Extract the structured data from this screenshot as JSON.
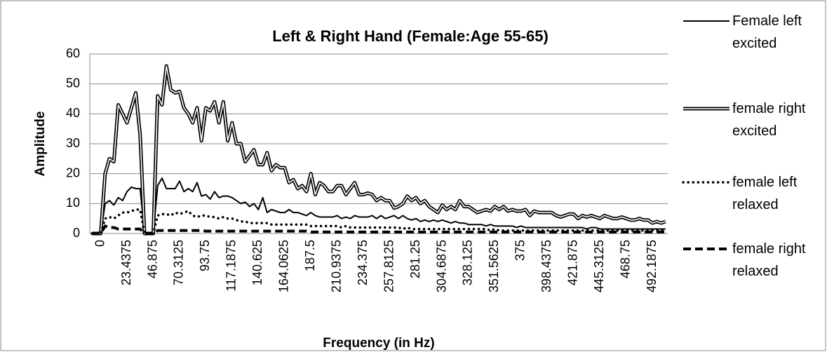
{
  "chart_data": {
    "type": "line",
    "title": "Left & Right Hand (Female:Age 55-65)",
    "x_label": "Frequency (in Hz)",
    "y_label": "Amplitude",
    "ylim": [
      0,
      60
    ],
    "yticks": [
      0,
      10,
      20,
      30,
      40,
      50,
      60
    ],
    "grid": true,
    "legend": "right",
    "categories": [
      null,
      null,
      "0",
      null,
      null,
      null,
      null,
      null,
      "23.4375",
      null,
      null,
      null,
      null,
      null,
      "46.875",
      null,
      null,
      null,
      null,
      null,
      "70.3125",
      null,
      null,
      null,
      null,
      null,
      "93.75",
      null,
      null,
      null,
      null,
      null,
      "117.1875",
      null,
      null,
      null,
      null,
      null,
      "140.625",
      null,
      null,
      null,
      null,
      null,
      "164.0625",
      null,
      null,
      null,
      null,
      null,
      "187.5",
      null,
      null,
      null,
      null,
      null,
      "210.9375",
      null,
      null,
      null,
      null,
      null,
      "234.375",
      null,
      null,
      null,
      null,
      null,
      "257.8125",
      null,
      null,
      null,
      null,
      null,
      "281.25",
      null,
      null,
      null,
      null,
      null,
      "304.6875",
      null,
      null,
      null,
      null,
      null,
      "328.125",
      null,
      null,
      null,
      null,
      null,
      "351.5625",
      null,
      null,
      null,
      null,
      null,
      "375",
      null,
      null,
      null,
      null,
      null,
      "398.4375",
      null,
      null,
      null,
      null,
      null,
      "421.875",
      null,
      null,
      null,
      null,
      null,
      "445.3125",
      null,
      null,
      null,
      null,
      null,
      "468.75",
      null,
      null,
      null,
      null,
      null,
      "492.1875",
      null,
      null,
      null
    ],
    "series": [
      {
        "name": "Female left excited",
        "color": "#000000",
        "dash": "solid",
        "values": [
          0,
          0,
          0,
          10,
          11,
          9.5,
          12,
          11,
          14,
          15.5,
          15,
          15,
          0,
          0,
          0,
          16,
          18.5,
          15,
          15,
          15,
          17.5,
          14,
          15,
          14,
          17,
          12.5,
          13,
          11.5,
          14,
          12,
          12.5,
          12.5,
          12,
          11,
          10,
          10.5,
          9,
          10,
          8,
          12,
          7,
          8,
          7.5,
          7,
          7,
          8,
          7,
          7,
          6.5,
          6,
          7,
          6,
          5.5,
          5.5,
          5.5,
          5.5,
          6,
          5,
          5.5,
          5,
          6,
          5.5,
          5.5,
          5.5,
          6,
          5,
          6,
          5,
          5.5,
          6,
          5,
          6,
          5,
          4.5,
          5,
          4,
          4.5,
          4,
          4.5,
          4,
          4.5,
          4,
          3.5,
          4,
          3.5,
          3.5,
          3,
          3,
          3,
          3,
          2.5,
          3,
          2.5,
          2.5,
          2.5,
          2.5,
          2.5,
          2,
          2.5,
          2,
          2,
          2,
          2,
          2,
          2,
          2,
          2,
          2,
          2,
          2,
          2,
          2,
          2,
          1.5,
          2,
          2,
          1.5,
          1.5,
          1.5,
          1.5,
          1.5,
          1.5,
          1.5,
          1.5,
          1.5,
          1.5,
          1.5,
          1.5,
          1.5,
          1.5,
          1.5,
          1.5
        ]
      },
      {
        "name": "female right excited",
        "color": "#000000",
        "dash": "double",
        "values": [
          0,
          0,
          0,
          20,
          25,
          24,
          43,
          40,
          37,
          42,
          47,
          33,
          0,
          0,
          0,
          46,
          43,
          56,
          48,
          47,
          47.5,
          42,
          40,
          37,
          42,
          31,
          42,
          41,
          44,
          37,
          44,
          31,
          37,
          30,
          30,
          24,
          26,
          28,
          23,
          23,
          27,
          21,
          23,
          22,
          22,
          17,
          18,
          15,
          16,
          14,
          20,
          13,
          17,
          16,
          14,
          14,
          16,
          16,
          13,
          15,
          17,
          13,
          13,
          13.5,
          13,
          11,
          12,
          11,
          11,
          8.5,
          9,
          10,
          12.5,
          11,
          12,
          10,
          11,
          9,
          8,
          7,
          9.5,
          8,
          9,
          8,
          11,
          9,
          9,
          8,
          7,
          7.5,
          8,
          7.5,
          9,
          8,
          9,
          7.5,
          8,
          7.5,
          7.5,
          8,
          6,
          7.5,
          7,
          7,
          7,
          7,
          6,
          5.5,
          6,
          6.5,
          6.5,
          5,
          6,
          5.5,
          6,
          5.5,
          5,
          6,
          5.5,
          5,
          5,
          5.5,
          5,
          4.5,
          4.5,
          5,
          4.5,
          4.5,
          3.5,
          4,
          3.5,
          4
        ]
      },
      {
        "name": "female left relaxed",
        "color": "#000000",
        "dash": "dotted",
        "values": [
          0,
          0,
          0,
          5,
          5.5,
          5,
          6,
          7,
          7,
          7.5,
          8,
          8,
          0,
          0,
          0,
          6,
          6.5,
          6.5,
          6,
          7,
          6.5,
          7,
          7.5,
          6,
          5.5,
          6,
          6,
          5.5,
          5.5,
          5,
          5.5,
          5,
          5,
          4.5,
          4,
          4,
          3.5,
          3.5,
          3.5,
          3.5,
          3.5,
          3,
          3,
          3,
          3,
          3,
          3,
          3,
          3,
          3,
          2.5,
          2.5,
          2.5,
          2.5,
          2.5,
          2.5,
          2.5,
          2,
          2.5,
          2,
          2,
          2,
          2,
          2,
          2,
          2,
          2,
          2,
          2,
          2,
          2,
          1.5,
          2,
          1.5,
          1.5,
          1.5,
          1.5,
          1.5,
          1.5,
          1.5,
          1.5,
          1.5,
          1.5,
          1.5,
          1.5,
          1.5,
          1.5,
          1.5,
          1.5,
          1.5,
          1.5,
          1,
          1.5,
          1,
          1,
          1,
          1,
          1,
          1,
          1,
          1,
          1,
          1,
          1,
          1,
          1,
          1,
          1,
          1,
          1,
          1,
          1,
          1,
          1,
          1,
          1,
          1,
          1,
          1,
          1,
          1,
          1,
          1,
          1,
          1,
          1,
          1,
          1,
          1,
          1,
          1,
          1
        ]
      },
      {
        "name": "female right relaxed",
        "color": "#000000",
        "dash": "dashed",
        "values": [
          0,
          0,
          0,
          2.5,
          2,
          2,
          1.5,
          1.5,
          1.5,
          1.5,
          1.5,
          1.5,
          0,
          0,
          0,
          1,
          1,
          1,
          1,
          1,
          1,
          1,
          1,
          1,
          1,
          1,
          0.8,
          0.8,
          0.8,
          0.8,
          0.8,
          0.8,
          0.8,
          0.8,
          0.8,
          0.8,
          0.8,
          0.8,
          0.8,
          0.8,
          0.8,
          0.8,
          0.8,
          0.8,
          0.8,
          0.8,
          0.8,
          0.8,
          0.8,
          0.8,
          0.5,
          0.5,
          0.5,
          0.5,
          0.5,
          0.5,
          0.5,
          0.5,
          0.5,
          0.5,
          0.5,
          0.5,
          0.5,
          0.5,
          0.5,
          0.5,
          0.5,
          0.5,
          0.5,
          0.5,
          0.5,
          0.5,
          0.5,
          0.5,
          0.5,
          0.5,
          0.5,
          0.5,
          0.5,
          0.5,
          0.5,
          0.5,
          0.5,
          0.5,
          0.5,
          0.5,
          0.5,
          0.5,
          0.5,
          0.5,
          0.5,
          0.5,
          0.5,
          0.5,
          0.5,
          0.5,
          0.5,
          0.5,
          0.5,
          0.5,
          0.5,
          0.5,
          0.5,
          0.5,
          0.5,
          0.5,
          0.5,
          0.5,
          0.5,
          0.5,
          0.5,
          0.5,
          0.5,
          0.5,
          0.5,
          0.5,
          0.5,
          0.5,
          0.5,
          0.5,
          0.5,
          0.5,
          0.5,
          0.5,
          0.5,
          0.5,
          0.5,
          0.5,
          0.5,
          0.5,
          0.5,
          0.5
        ]
      }
    ]
  }
}
